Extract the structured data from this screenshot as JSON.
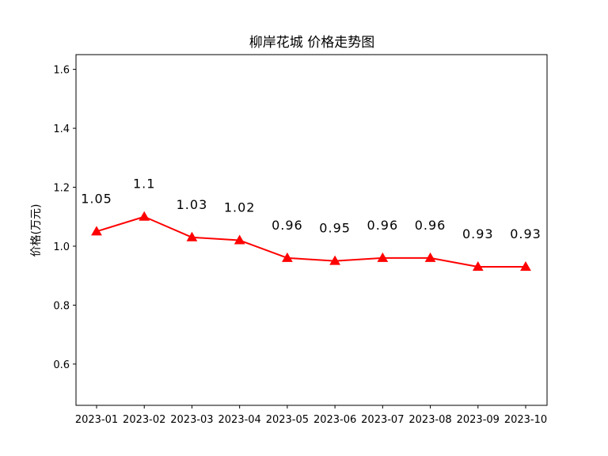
{
  "chart_data": {
    "type": "line",
    "title": "柳岸花城 价格走势图",
    "xlabel": "",
    "ylabel": "价格(万元)",
    "categories": [
      "2023-01",
      "2023-02",
      "2023-03",
      "2023-04",
      "2023-05",
      "2023-06",
      "2023-07",
      "2023-08",
      "2023-09",
      "2023-10"
    ],
    "series": [
      {
        "values": [
          1.05,
          1.1,
          1.03,
          1.02,
          0.96,
          0.95,
          0.96,
          0.96,
          0.93,
          0.93
        ],
        "data_labels": [
          "1.05",
          "1.1",
          "1.03",
          "1.02",
          "0.96",
          "0.95",
          "0.96",
          "0.96",
          "0.93",
          "0.93"
        ],
        "color": "#ff0000",
        "marker": "triangle-up"
      }
    ],
    "ylim": [
      0.46,
      1.65
    ],
    "yticks": [
      0.6,
      0.8,
      1.0,
      1.2,
      1.4,
      1.6
    ],
    "ytick_labels": [
      "0.6",
      "0.8",
      "1.0",
      "1.2",
      "1.4",
      "1.6"
    ],
    "grid": false,
    "legend": "none"
  }
}
